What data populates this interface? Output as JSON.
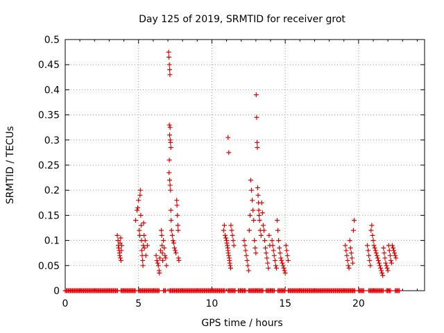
{
  "chart_data": {
    "type": "scatter",
    "title": "Day 125 of 2019, SRMTID for receiver grot",
    "xlabel": "GPS time / hours",
    "ylabel": "SRMTID / TECUs",
    "xlim": [
      0,
      24.5
    ],
    "ylim": [
      0,
      0.5
    ],
    "x_ticks": [
      0,
      5,
      10,
      15,
      20
    ],
    "x_tick_labels": [
      "0",
      "5",
      "10",
      "15",
      "20"
    ],
    "y_ticks": [
      0,
      0.05,
      0.1,
      0.15,
      0.2,
      0.25,
      0.3,
      0.35,
      0.4,
      0.45,
      0.5
    ],
    "y_tick_labels": [
      "0",
      "0.05",
      "0.1",
      "0.15",
      "0.2",
      "0.25",
      "0.3",
      "0.35",
      "0.4",
      "0.45",
      "0.5"
    ],
    "grid": true,
    "marker": "+",
    "color": "#e00000",
    "baseline_series": {
      "name": "zero values",
      "x_ranges": [
        [
          0,
          3.6
        ],
        [
          3.8,
          4.8
        ],
        [
          5.0,
          6.4
        ],
        [
          6.7,
          6.9
        ],
        [
          7.1,
          10.9
        ],
        [
          11.1,
          11.6
        ],
        [
          11.8,
          12.3
        ],
        [
          12.5,
          13.5
        ],
        [
          13.7,
          14.3
        ],
        [
          14.5,
          15.0
        ],
        [
          15.2,
          19.8
        ],
        [
          20.0,
          20.4
        ],
        [
          20.7,
          21.7
        ],
        [
          21.9,
          22.2
        ],
        [
          22.5,
          22.8
        ]
      ],
      "y": 0
    },
    "series": [
      {
        "name": "SRMTID",
        "points": [
          [
            3.55,
            0.11
          ],
          [
            3.6,
            0.1
          ],
          [
            3.62,
            0.09
          ],
          [
            3.65,
            0.085
          ],
          [
            3.68,
            0.08
          ],
          [
            3.7,
            0.075
          ],
          [
            3.72,
            0.07
          ],
          [
            3.74,
            0.095
          ],
          [
            3.76,
            0.065
          ],
          [
            3.78,
            0.105
          ],
          [
            3.8,
            0.06
          ],
          [
            3.82,
            0.08
          ],
          [
            3.85,
            0.09
          ],
          [
            4.8,
            0.14
          ],
          [
            4.9,
            0.16
          ],
          [
            4.95,
            0.165
          ],
          [
            5.0,
            0.18
          ],
          [
            5.05,
            0.12
          ],
          [
            5.08,
            0.11
          ],
          [
            5.1,
            0.19
          ],
          [
            5.12,
            0.2
          ],
          [
            5.15,
            0.15
          ],
          [
            5.18,
            0.13
          ],
          [
            5.2,
            0.1
          ],
          [
            5.22,
            0.08
          ],
          [
            5.25,
            0.07
          ],
          [
            5.28,
            0.06
          ],
          [
            5.3,
            0.05
          ],
          [
            5.32,
            0.09
          ],
          [
            5.35,
            0.135
          ],
          [
            5.38,
            0.11
          ],
          [
            5.4,
            0.085
          ],
          [
            5.45,
            0.1
          ],
          [
            5.5,
            0.07
          ],
          [
            5.6,
            0.09
          ],
          [
            6.2,
            0.07
          ],
          [
            6.25,
            0.06
          ],
          [
            6.3,
            0.055
          ],
          [
            6.35,
            0.05
          ],
          [
            6.4,
            0.04
          ],
          [
            6.42,
            0.035
          ],
          [
            6.45,
            0.065
          ],
          [
            6.5,
            0.08
          ],
          [
            6.55,
            0.12
          ],
          [
            6.58,
            0.11
          ],
          [
            6.6,
            0.09
          ],
          [
            6.62,
            0.075
          ],
          [
            6.65,
            0.06
          ],
          [
            6.7,
            0.1
          ],
          [
            6.75,
            0.085
          ],
          [
            6.8,
            0.07
          ],
          [
            6.85,
            0.065
          ],
          [
            6.9,
            0.05
          ],
          [
            7.05,
            0.475
          ],
          [
            7.07,
            0.465
          ],
          [
            7.1,
            0.45
          ],
          [
            7.12,
            0.44
          ],
          [
            7.14,
            0.43
          ],
          [
            7.1,
            0.33
          ],
          [
            7.15,
            0.325
          ],
          [
            7.12,
            0.31
          ],
          [
            7.16,
            0.3
          ],
          [
            7.18,
            0.295
          ],
          [
            7.2,
            0.285
          ],
          [
            7.1,
            0.26
          ],
          [
            7.08,
            0.235
          ],
          [
            7.12,
            0.22
          ],
          [
            7.15,
            0.21
          ],
          [
            7.18,
            0.2
          ],
          [
            7.2,
            0.16
          ],
          [
            7.22,
            0.14
          ],
          [
            7.25,
            0.12
          ],
          [
            7.3,
            0.11
          ],
          [
            7.35,
            0.1
          ],
          [
            7.4,
            0.095
          ],
          [
            7.45,
            0.085
          ],
          [
            7.5,
            0.08
          ],
          [
            7.55,
            0.075
          ],
          [
            7.6,
            0.18
          ],
          [
            7.62,
            0.17
          ],
          [
            7.65,
            0.15
          ],
          [
            7.68,
            0.13
          ],
          [
            7.7,
            0.12
          ],
          [
            7.72,
            0.065
          ],
          [
            7.75,
            0.06
          ],
          [
            10.8,
            0.12
          ],
          [
            10.85,
            0.13
          ],
          [
            10.9,
            0.11
          ],
          [
            10.95,
            0.105
          ],
          [
            11.0,
            0.1
          ],
          [
            11.02,
            0.095
          ],
          [
            11.05,
            0.09
          ],
          [
            11.08,
            0.085
          ],
          [
            11.1,
            0.08
          ],
          [
            11.12,
            0.075
          ],
          [
            11.15,
            0.07
          ],
          [
            11.18,
            0.065
          ],
          [
            11.2,
            0.06
          ],
          [
            11.22,
            0.055
          ],
          [
            11.25,
            0.05
          ],
          [
            11.28,
            0.045
          ],
          [
            11.1,
            0.305
          ],
          [
            11.15,
            0.275
          ],
          [
            11.3,
            0.13
          ],
          [
            11.35,
            0.12
          ],
          [
            11.4,
            0.11
          ],
          [
            11.45,
            0.1
          ],
          [
            11.5,
            0.09
          ],
          [
            12.2,
            0.1
          ],
          [
            12.25,
            0.09
          ],
          [
            12.3,
            0.08
          ],
          [
            12.35,
            0.07
          ],
          [
            12.4,
            0.06
          ],
          [
            12.45,
            0.05
          ],
          [
            12.5,
            0.04
          ],
          [
            12.55,
            0.12
          ],
          [
            12.6,
            0.15
          ],
          [
            12.65,
            0.22
          ],
          [
            12.7,
            0.2
          ],
          [
            12.75,
            0.18
          ],
          [
            12.8,
            0.16
          ],
          [
            12.85,
            0.14
          ],
          [
            12.9,
            0.1
          ],
          [
            12.95,
            0.085
          ],
          [
            13.0,
            0.075
          ],
          [
            13.02,
            0.39
          ],
          [
            13.05,
            0.345
          ],
          [
            13.08,
            0.295
          ],
          [
            13.1,
            0.285
          ],
          [
            13.12,
            0.205
          ],
          [
            13.15,
            0.19
          ],
          [
            13.18,
            0.175
          ],
          [
            13.2,
            0.16
          ],
          [
            13.22,
            0.15
          ],
          [
            13.25,
            0.14
          ],
          [
            13.3,
            0.12
          ],
          [
            13.35,
            0.11
          ],
          [
            13.4,
            0.175
          ],
          [
            13.45,
            0.155
          ],
          [
            13.5,
            0.13
          ],
          [
            13.55,
            0.12
          ],
          [
            13.6,
            0.1
          ],
          [
            13.65,
            0.085
          ],
          [
            13.7,
            0.075
          ],
          [
            13.75,
            0.065
          ],
          [
            13.8,
            0.055
          ],
          [
            13.85,
            0.045
          ],
          [
            13.9,
            0.11
          ],
          [
            13.95,
            0.09
          ],
          [
            14.1,
            0.1
          ],
          [
            14.15,
            0.09
          ],
          [
            14.2,
            0.08
          ],
          [
            14.25,
            0.07
          ],
          [
            14.3,
            0.06
          ],
          [
            14.35,
            0.05
          ],
          [
            14.4,
            0.045
          ],
          [
            14.45,
            0.14
          ],
          [
            14.5,
            0.12
          ],
          [
            14.55,
            0.1
          ],
          [
            14.6,
            0.085
          ],
          [
            14.65,
            0.075
          ],
          [
            14.7,
            0.065
          ],
          [
            14.75,
            0.06
          ],
          [
            14.8,
            0.055
          ],
          [
            14.85,
            0.05
          ],
          [
            14.9,
            0.045
          ],
          [
            14.95,
            0.04
          ],
          [
            15.0,
            0.035
          ],
          [
            15.05,
            0.09
          ],
          [
            15.1,
            0.08
          ],
          [
            15.15,
            0.07
          ],
          [
            15.2,
            0.06
          ],
          [
            19.1,
            0.09
          ],
          [
            19.15,
            0.08
          ],
          [
            19.2,
            0.07
          ],
          [
            19.25,
            0.06
          ],
          [
            19.3,
            0.05
          ],
          [
            19.35,
            0.045
          ],
          [
            19.4,
            0.1
          ],
          [
            19.45,
            0.085
          ],
          [
            19.5,
            0.075
          ],
          [
            19.55,
            0.065
          ],
          [
            19.6,
            0.055
          ],
          [
            19.65,
            0.12
          ],
          [
            19.7,
            0.14
          ],
          [
            20.6,
            0.09
          ],
          [
            20.65,
            0.08
          ],
          [
            20.7,
            0.07
          ],
          [
            20.75,
            0.06
          ],
          [
            20.8,
            0.05
          ],
          [
            20.85,
            0.12
          ],
          [
            20.9,
            0.13
          ],
          [
            20.95,
            0.11
          ],
          [
            21.0,
            0.1
          ],
          [
            21.05,
            0.09
          ],
          [
            21.1,
            0.085
          ],
          [
            21.15,
            0.08
          ],
          [
            21.2,
            0.075
          ],
          [
            21.25,
            0.07
          ],
          [
            21.3,
            0.065
          ],
          [
            21.35,
            0.06
          ],
          [
            21.4,
            0.055
          ],
          [
            21.45,
            0.05
          ],
          [
            21.5,
            0.045
          ],
          [
            21.55,
            0.04
          ],
          [
            21.6,
            0.035
          ],
          [
            21.65,
            0.03
          ],
          [
            21.7,
            0.085
          ],
          [
            21.75,
            0.075
          ],
          [
            21.8,
            0.065
          ],
          [
            21.85,
            0.055
          ],
          [
            21.9,
            0.05
          ],
          [
            21.95,
            0.045
          ],
          [
            22.0,
            0.04
          ],
          [
            22.05,
            0.09
          ],
          [
            22.1,
            0.08
          ],
          [
            22.15,
            0.07
          ],
          [
            22.2,
            0.06
          ],
          [
            22.25,
            0.055
          ],
          [
            22.3,
            0.09
          ],
          [
            22.35,
            0.085
          ],
          [
            22.4,
            0.08
          ],
          [
            22.45,
            0.075
          ],
          [
            22.5,
            0.07
          ],
          [
            22.55,
            0.065
          ]
        ]
      }
    ]
  }
}
